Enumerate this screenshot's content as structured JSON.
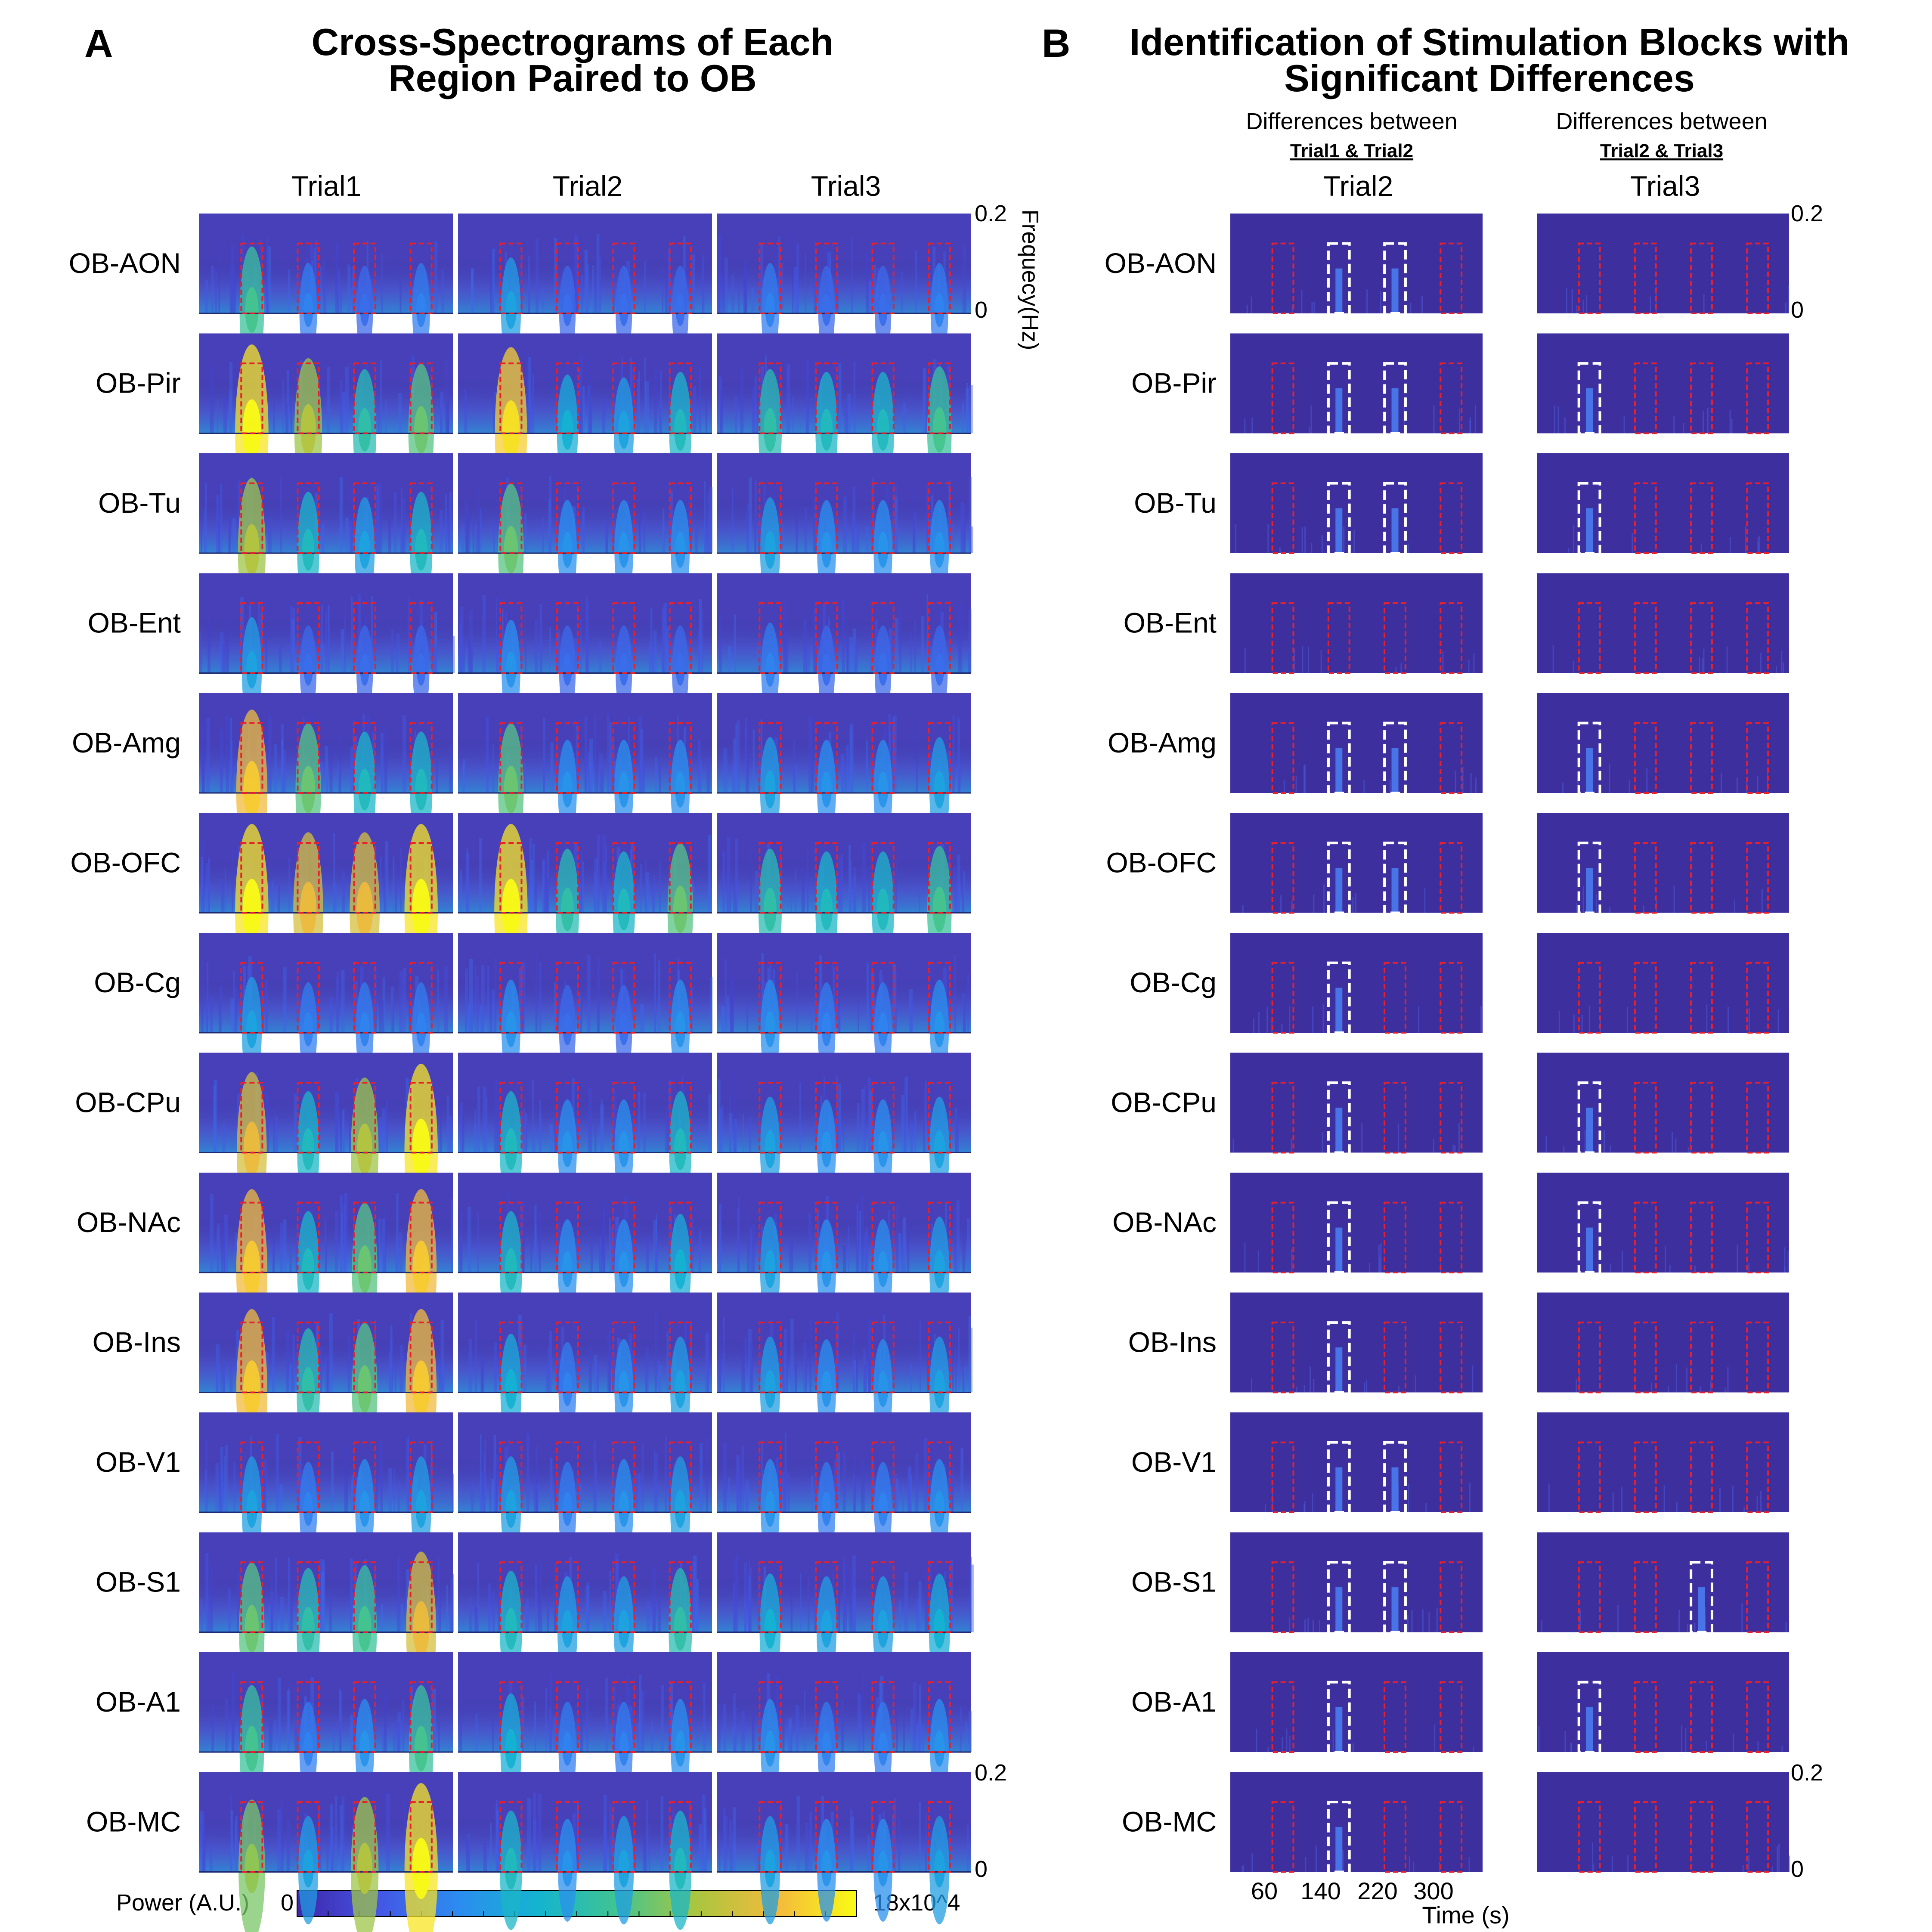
{
  "panel_a": {
    "letter": "A",
    "title_line1": "Cross-Spectrograms of Each",
    "title_line2": "Region Paired to OB",
    "columns": [
      "Trial1",
      "Trial2",
      "Trial3"
    ],
    "freq_axis_label": "Frequecy(Hz)",
    "colorbar": {
      "label": "Power (A.U.)",
      "min_label": "0",
      "max_label": "18x10^4"
    }
  },
  "panel_b": {
    "letter": "B",
    "title_line1": "Identification of Stimulation Blocks with",
    "title_line2": "Significant Differences",
    "columns": [
      {
        "header": "Differences between",
        "subheader": "Trial1 & Trial2",
        "trial": "Trial2"
      },
      {
        "header": "Differences between",
        "subheader": "Trial2 & Trial3",
        "trial": "Trial3"
      }
    ],
    "time_axis_label": "Time (s)"
  },
  "colors": {
    "background_low": "#3e2f9e",
    "stim_box": "#e8202a",
    "significant_box": "#ffffff",
    "colormap": [
      "#3e26a8",
      "#4554e4",
      "#2c8cf0",
      "#14b4d0",
      "#40c492",
      "#a8c640",
      "#f4ba3c",
      "#f9fb15"
    ]
  },
  "chart_data": {
    "type": "heatmap",
    "regions": [
      "OB-AON",
      "OB-Pir",
      "OB-Tu",
      "OB-Ent",
      "OB-Amg",
      "OB-OFC",
      "OB-Cg",
      "OB-CPu",
      "OB-NAc",
      "OB-Ins",
      "OB-V1",
      "OB-S1",
      "OB-A1",
      "OB-MC"
    ],
    "freq_range_hz": [
      0,
      0.2
    ],
    "freq_ticks": [
      "0",
      "0.2"
    ],
    "time_range_s": [
      0,
      360
    ],
    "time_ticks": [
      60,
      140,
      220,
      300
    ],
    "stimulation_block_starts_s": [
      60,
      140,
      220,
      300
    ],
    "stimulation_block_duration_s": 30,
    "power_range": [
      0,
      180000
    ],
    "peak_power_by_block": {
      "note_units": "fraction of colorbar maximum",
      "Trial1": [
        [
          0.55,
          0.25,
          0.2,
          0.25
        ],
        [
          0.95,
          0.7,
          0.5,
          0.6
        ],
        [
          0.7,
          0.45,
          0.35,
          0.45
        ],
        [
          0.35,
          0.2,
          0.2,
          0.2
        ],
        [
          0.85,
          0.6,
          0.45,
          0.45
        ],
        [
          0.95,
          0.8,
          0.8,
          0.95
        ],
        [
          0.35,
          0.25,
          0.25,
          0.25
        ],
        [
          0.8,
          0.45,
          0.7,
          0.95
        ],
        [
          0.85,
          0.45,
          0.6,
          0.85
        ],
        [
          0.85,
          0.5,
          0.6,
          0.85
        ],
        [
          0.35,
          0.25,
          0.3,
          0.35
        ],
        [
          0.6,
          0.5,
          0.55,
          0.8
        ],
        [
          0.55,
          0.25,
          0.3,
          0.55
        ],
        [
          0.65,
          0.35,
          0.7,
          0.95
        ]
      ],
      "Trial2": [
        [
          0.35,
          0.2,
          0.2,
          0.2
        ],
        [
          0.9,
          0.4,
          0.35,
          0.45
        ],
        [
          0.6,
          0.3,
          0.3,
          0.3
        ],
        [
          0.3,
          0.2,
          0.2,
          0.2
        ],
        [
          0.6,
          0.3,
          0.3,
          0.3
        ],
        [
          0.95,
          0.5,
          0.45,
          0.6
        ],
        [
          0.3,
          0.2,
          0.2,
          0.3
        ],
        [
          0.45,
          0.3,
          0.3,
          0.45
        ],
        [
          0.45,
          0.3,
          0.3,
          0.4
        ],
        [
          0.4,
          0.25,
          0.3,
          0.35
        ],
        [
          0.35,
          0.25,
          0.3,
          0.35
        ],
        [
          0.45,
          0.35,
          0.35,
          0.5
        ],
        [
          0.4,
          0.25,
          0.25,
          0.3
        ],
        [
          0.45,
          0.3,
          0.35,
          0.45
        ]
      ],
      "Trial3": [
        [
          0.25,
          0.2,
          0.2,
          0.25
        ],
        [
          0.5,
          0.45,
          0.45,
          0.55
        ],
        [
          0.35,
          0.3,
          0.3,
          0.3
        ],
        [
          0.25,
          0.2,
          0.2,
          0.2
        ],
        [
          0.35,
          0.3,
          0.3,
          0.35
        ],
        [
          0.5,
          0.45,
          0.45,
          0.55
        ],
        [
          0.3,
          0.25,
          0.25,
          0.3
        ],
        [
          0.35,
          0.3,
          0.3,
          0.35
        ],
        [
          0.35,
          0.3,
          0.3,
          0.35
        ],
        [
          0.35,
          0.3,
          0.3,
          0.35
        ],
        [
          0.3,
          0.25,
          0.25,
          0.3
        ],
        [
          0.4,
          0.35,
          0.35,
          0.4
        ],
        [
          0.3,
          0.25,
          0.25,
          0.3
        ],
        [
          0.35,
          0.3,
          0.3,
          0.35
        ]
      ]
    },
    "significant_blocks": {
      "Trial1 & Trial2": [
        [
          false,
          true,
          true,
          false
        ],
        [
          false,
          true,
          true,
          false
        ],
        [
          false,
          true,
          true,
          false
        ],
        [
          false,
          false,
          false,
          false
        ],
        [
          false,
          true,
          true,
          false
        ],
        [
          false,
          true,
          true,
          false
        ],
        [
          false,
          true,
          false,
          false
        ],
        [
          false,
          true,
          false,
          false
        ],
        [
          false,
          true,
          false,
          false
        ],
        [
          false,
          true,
          false,
          false
        ],
        [
          false,
          true,
          true,
          false
        ],
        [
          false,
          true,
          true,
          false
        ],
        [
          false,
          true,
          false,
          false
        ],
        [
          false,
          true,
          false,
          false
        ]
      ],
      "Trial2 & Trial3": [
        [
          false,
          false,
          false,
          false
        ],
        [
          true,
          false,
          false,
          false
        ],
        [
          true,
          false,
          false,
          false
        ],
        [
          false,
          false,
          false,
          false
        ],
        [
          true,
          false,
          false,
          false
        ],
        [
          true,
          false,
          false,
          false
        ],
        [
          false,
          false,
          false,
          false
        ],
        [
          true,
          false,
          false,
          false
        ],
        [
          true,
          false,
          false,
          false
        ],
        [
          false,
          false,
          false,
          false
        ],
        [
          false,
          false,
          false,
          false
        ],
        [
          false,
          false,
          true,
          false
        ],
        [
          true,
          false,
          false,
          false
        ],
        [
          false,
          false,
          false,
          false
        ]
      ]
    }
  }
}
